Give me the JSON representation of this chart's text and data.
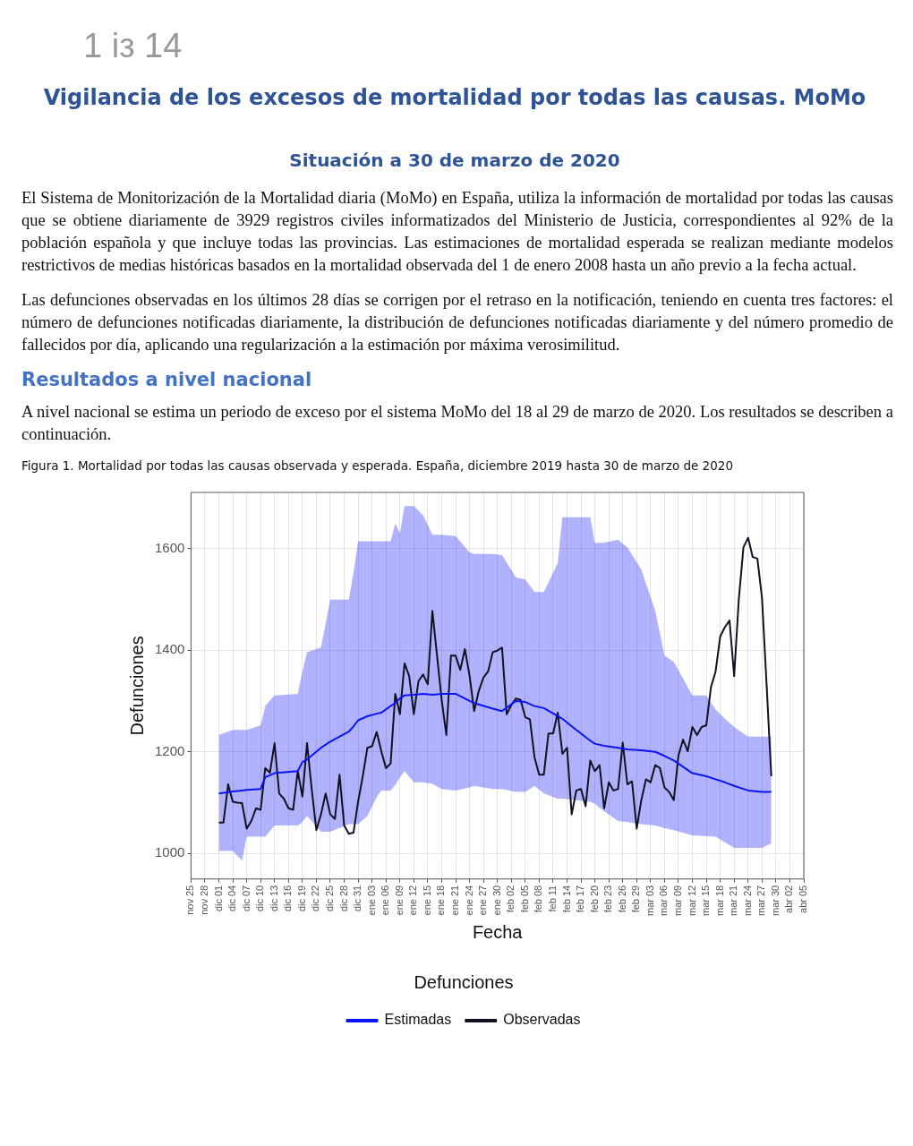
{
  "chart_data": {
    "type": "line",
    "title": "Vigilancia de los excesos de mortalidad por todas las causas. MoMo",
    "subtitle": "Situación a 30 de marzo de 2020",
    "annotations": [
      "1 iз 14",
      "El Sistema de Monitorización de la Mortalidad diaria (MoMo) en España, utiliza la información de mortalidad por todas las causas que se obtiene diariamente de 3929 registros civiles informatizados del Ministerio de Justicia, correspondientes al 92% de la población española y que incluye todas las provincias. Las estimaciones de mortalidad esperada se realizan mediante modelos restrictivos de medias históricas basados en la mortalidad observada del 1 de enero 2008 hasta un año previo a la fecha actual.",
      "Las defunciones observadas en los últimos 28 días se corrigen por el retraso en la notificación, teniendo en cuenta tres factores: el número de defunciones notificadas diariamente, la distribución de defunciones notificadas diariamente y del número promedio de fallecidos por día, aplicando una regularización a la estimación por máxima verosimilitud.",
      "Resultados a nivel nacional",
      "A nivel nacional se estima un periodo de exceso por el sistema MoMo del 18 al 29 de marzo de 2020. Los resultados se describen a continuación.",
      "Figura 1. Mortalidad por todas las causas observada y esperada. España, diciembre 2019 hasta 30 de marzo de 2020"
    ],
    "xlabel": "Fecha",
    "ylabel": "Defunciones",
    "legend_title": "Defunciones",
    "legend": "bottom",
    "grid": true,
    "xlim": [
      "2019-11-25",
      "2020-04-05"
    ],
    "ylim": [
      950,
      1710
    ],
    "yticks": [
      1000,
      1200,
      1400,
      1600
    ],
    "xticks": [
      {
        "value": "2019-11-25",
        "label": "nov 25"
      },
      {
        "value": "2019-11-28",
        "label": "nov 28"
      },
      {
        "value": "2019-12-01",
        "label": "dic 01"
      },
      {
        "value": "2019-12-04",
        "label": "dic 04"
      },
      {
        "value": "2019-12-07",
        "label": "dic 07"
      },
      {
        "value": "2019-12-10",
        "label": "dic 10"
      },
      {
        "value": "2019-12-13",
        "label": "dic 13"
      },
      {
        "value": "2019-12-16",
        "label": "dic 16"
      },
      {
        "value": "2019-12-19",
        "label": "dic 19"
      },
      {
        "value": "2019-12-22",
        "label": "dic 22"
      },
      {
        "value": "2019-12-25",
        "label": "dic 25"
      },
      {
        "value": "2019-12-28",
        "label": "dic 28"
      },
      {
        "value": "2019-12-31",
        "label": "dic 31"
      },
      {
        "value": "2020-01-03",
        "label": "ene 03"
      },
      {
        "value": "2020-01-06",
        "label": "ene 06"
      },
      {
        "value": "2020-01-09",
        "label": "ene 09"
      },
      {
        "value": "2020-01-12",
        "label": "ene 12"
      },
      {
        "value": "2020-01-15",
        "label": "ene 15"
      },
      {
        "value": "2020-01-18",
        "label": "ene 18"
      },
      {
        "value": "2020-01-21",
        "label": "ene 21"
      },
      {
        "value": "2020-01-24",
        "label": "ene 24"
      },
      {
        "value": "2020-01-27",
        "label": "ene 27"
      },
      {
        "value": "2020-01-30",
        "label": "ene 30"
      },
      {
        "value": "2020-02-02",
        "label": "feb 02"
      },
      {
        "value": "2020-02-05",
        "label": "feb 05"
      },
      {
        "value": "2020-02-08",
        "label": "feb 08"
      },
      {
        "value": "2020-02-11",
        "label": "feb 11"
      },
      {
        "value": "2020-02-14",
        "label": "feb 14"
      },
      {
        "value": "2020-02-17",
        "label": "feb 17"
      },
      {
        "value": "2020-02-20",
        "label": "feb 20"
      },
      {
        "value": "2020-02-23",
        "label": "feb 23"
      },
      {
        "value": "2020-02-26",
        "label": "feb 26"
      },
      {
        "value": "2020-02-29",
        "label": "feb 29"
      },
      {
        "value": "2020-03-03",
        "label": "mar 03"
      },
      {
        "value": "2020-03-06",
        "label": "mar 06"
      },
      {
        "value": "2020-03-09",
        "label": "mar 09"
      },
      {
        "value": "2020-03-12",
        "label": "mar 12"
      },
      {
        "value": "2020-03-15",
        "label": "mar 15"
      },
      {
        "value": "2020-03-18",
        "label": "mar 18"
      },
      {
        "value": "2020-03-21",
        "label": "mar 21"
      },
      {
        "value": "2020-03-24",
        "label": "mar 24"
      },
      {
        "value": "2020-03-27",
        "label": "mar 27"
      },
      {
        "value": "2020-03-30",
        "label": "mar 30"
      },
      {
        "value": "2020-04-02",
        "label": "abr 02"
      },
      {
        "value": "2020-04-05",
        "label": "abr 05"
      }
    ],
    "series": [
      {
        "name": "Estimadas",
        "color": "#0a14f5",
        "x": [
          "2019-12-01",
          "2019-12-04",
          "2019-12-06",
          "2019-12-07",
          "2019-12-10",
          "2019-12-11",
          "2019-12-13",
          "2019-12-18",
          "2019-12-19",
          "2019-12-20",
          "2019-12-23",
          "2019-12-25",
          "2019-12-29",
          "2019-12-30",
          "2019-12-31",
          "2020-01-02",
          "2020-01-04",
          "2020-01-05",
          "2020-01-07",
          "2020-01-08",
          "2020-01-09",
          "2020-01-10",
          "2020-01-12",
          "2020-01-14",
          "2020-01-16",
          "2020-01-18",
          "2020-01-21",
          "2020-01-24",
          "2020-01-25",
          "2020-01-29",
          "2020-01-31",
          "2020-02-03",
          "2020-02-05",
          "2020-02-07",
          "2020-02-09",
          "2020-02-12",
          "2020-02-13",
          "2020-02-15",
          "2020-02-19",
          "2020-02-20",
          "2020-02-22",
          "2020-02-25",
          "2020-02-27",
          "2020-03-01",
          "2020-03-04",
          "2020-03-06",
          "2020-03-08",
          "2020-03-12",
          "2020-03-15",
          "2020-03-17",
          "2020-03-19",
          "2020-03-21",
          "2020-03-24",
          "2020-03-27",
          "2020-03-29"
        ],
        "values": [
          1118,
          1122,
          1124,
          1125,
          1127,
          1150,
          1158,
          1162,
          1180,
          1185,
          1208,
          1220,
          1240,
          1250,
          1262,
          1270,
          1275,
          1277,
          1290,
          1296,
          1305,
          1311,
          1312,
          1314,
          1312,
          1314,
          1314,
          1300,
          1296,
          1285,
          1280,
          1300,
          1298,
          1290,
          1286,
          1270,
          1265,
          1250,
          1222,
          1216,
          1212,
          1208,
          1205,
          1203,
          1200,
          1192,
          1183,
          1158,
          1152,
          1146,
          1140,
          1133,
          1124,
          1121,
          1121
        ],
        "lower": [
          1005,
          1005,
          986,
          1033,
          1033,
          1033,
          1055,
          1055,
          1062,
          1074,
          1043,
          1043,
          1058,
          1058,
          1058,
          1074,
          1111,
          1124,
          1124,
          1135,
          1150,
          1162,
          1140,
          1140,
          1137,
          1127,
          1124,
          1130,
          1133,
          1127,
          1127,
          1121,
          1121,
          1133,
          1118,
          1108,
          1108,
          1106,
          1102,
          1098,
          1083,
          1064,
          1062,
          1058,
          1055,
          1050,
          1046,
          1036,
          1034,
          1033,
          1022,
          1011,
          1011,
          1011,
          1020
        ],
        "upper": [
          1233,
          1243,
          1243,
          1243,
          1252,
          1290,
          1311,
          1314,
          1358,
          1396,
          1405,
          1499,
          1499,
          1552,
          1614,
          1614,
          1614,
          1614,
          1614,
          1649,
          1630,
          1683,
          1683,
          1665,
          1627,
          1627,
          1624,
          1592,
          1589,
          1589,
          1587,
          1543,
          1539,
          1514,
          1514,
          1571,
          1661,
          1661,
          1661,
          1611,
          1611,
          1617,
          1602,
          1558,
          1477,
          1389,
          1377,
          1311,
          1311,
          1283,
          1265,
          1249,
          1230,
          1230,
          1230
        ]
      },
      {
        "name": "Observadas",
        "color": "#111122",
        "x": [
          "2019-12-01",
          "2019-12-02",
          "2019-12-03",
          "2019-12-04",
          "2019-12-05",
          "2019-12-06",
          "2019-12-07",
          "2019-12-08",
          "2019-12-09",
          "2019-12-10",
          "2019-12-11",
          "2019-12-12",
          "2019-12-13",
          "2019-12-14",
          "2019-12-15",
          "2019-12-16",
          "2019-12-17",
          "2019-12-18",
          "2019-12-19",
          "2019-12-20",
          "2019-12-21",
          "2019-12-22",
          "2019-12-23",
          "2019-12-24",
          "2019-12-25",
          "2019-12-26",
          "2019-12-27",
          "2019-12-28",
          "2019-12-29",
          "2019-12-30",
          "2019-12-31",
          "2020-01-01",
          "2020-01-02",
          "2020-01-03",
          "2020-01-04",
          "2020-01-05",
          "2020-01-06",
          "2020-01-07",
          "2020-01-08",
          "2020-01-09",
          "2020-01-10",
          "2020-01-11",
          "2020-01-12",
          "2020-01-13",
          "2020-01-14",
          "2020-01-15",
          "2020-01-16",
          "2020-01-17",
          "2020-01-18",
          "2020-01-19",
          "2020-01-20",
          "2020-01-21",
          "2020-01-22",
          "2020-01-23",
          "2020-01-24",
          "2020-01-25",
          "2020-01-26",
          "2020-01-27",
          "2020-01-28",
          "2020-01-29",
          "2020-01-30",
          "2020-01-31",
          "2020-02-01",
          "2020-02-02",
          "2020-02-03",
          "2020-02-04",
          "2020-02-05",
          "2020-02-06",
          "2020-02-07",
          "2020-02-08",
          "2020-02-09",
          "2020-02-10",
          "2020-02-11",
          "2020-02-12",
          "2020-02-13",
          "2020-02-14",
          "2020-02-15",
          "2020-02-16",
          "2020-02-17",
          "2020-02-18",
          "2020-02-19",
          "2020-02-20",
          "2020-02-21",
          "2020-02-22",
          "2020-02-23",
          "2020-02-24",
          "2020-02-25",
          "2020-02-26",
          "2020-02-27",
          "2020-02-28",
          "2020-02-29",
          "2020-03-01",
          "2020-03-02",
          "2020-03-03",
          "2020-03-04",
          "2020-03-05",
          "2020-03-06",
          "2020-03-07",
          "2020-03-08",
          "2020-03-09",
          "2020-03-10",
          "2020-03-11",
          "2020-03-12",
          "2020-03-13",
          "2020-03-14",
          "2020-03-15",
          "2020-03-16",
          "2020-03-17",
          "2020-03-18",
          "2020-03-19",
          "2020-03-20",
          "2020-03-21",
          "2020-03-22",
          "2020-03-23",
          "2020-03-24",
          "2020-03-25",
          "2020-03-26",
          "2020-03-27",
          "2020-03-28",
          "2020-03-29"
        ],
        "values": [
          1061,
          1061,
          1136,
          1102,
          1100,
          1099,
          1049,
          1064,
          1089,
          1086,
          1168,
          1159,
          1217,
          1118,
          1108,
          1089,
          1086,
          1162,
          1112,
          1217,
          1127,
          1046,
          1077,
          1118,
          1077,
          1068,
          1155,
          1055,
          1039,
          1041,
          1102,
          1152,
          1208,
          1211,
          1239,
          1201,
          1168,
          1177,
          1314,
          1274,
          1374,
          1349,
          1274,
          1339,
          1352,
          1333,
          1477,
          1389,
          1302,
          1233,
          1389,
          1389,
          1361,
          1402,
          1350,
          1280,
          1320,
          1346,
          1358,
          1396,
          1399,
          1405,
          1274,
          1292,
          1305,
          1302,
          1268,
          1264,
          1189,
          1155,
          1155,
          1236,
          1236,
          1277,
          1196,
          1208,
          1077,
          1124,
          1127,
          1093,
          1183,
          1162,
          1174,
          1089,
          1140,
          1124,
          1127,
          1218,
          1136,
          1142,
          1049,
          1105,
          1146,
          1140,
          1174,
          1168,
          1130,
          1121,
          1105,
          1193,
          1224,
          1201,
          1249,
          1233,
          1249,
          1252,
          1327,
          1358,
          1427,
          1445,
          1458,
          1349,
          1500,
          1602,
          1621,
          1583,
          1580,
          1502,
          1330,
          1152
        ]
      }
    ]
  }
}
